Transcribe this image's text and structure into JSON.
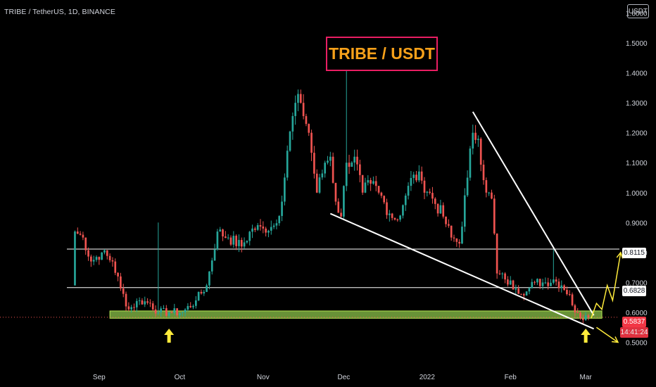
{
  "header": {
    "symbol_title": "TRIBE / TetherUS, 1D, BINANCE",
    "currency": "USDT"
  },
  "annotation": {
    "headline": "TRIBE / USDT"
  },
  "price_tags": {
    "resistance_1": "0.8115",
    "resistance_2": "0.6828",
    "last_price": "0.5837",
    "countdown": "14:41:24"
  },
  "colors": {
    "background": "#000000",
    "bull_candle": "#26a69a",
    "bear_candle": "#ef5350",
    "axis_text": "#d1d4dc",
    "headline_text": "#f7a11a",
    "headline_border": "#e91e63",
    "support_zone": "#8bc34a",
    "arrow": "#ffeb3b",
    "trendline": "#ffffff"
  },
  "chart_data": {
    "type": "candlestick",
    "title": "TRIBE / TetherUS, 1D, BINANCE",
    "ylim": [
      0.44,
      1.62
    ],
    "yticks": [
      1.6,
      1.5,
      1.4,
      1.3,
      1.2,
      1.1,
      1.0,
      0.9,
      0.8,
      0.7,
      0.6,
      0.5
    ],
    "ytick_labels": [
      "1.6000",
      "1.5000",
      "1.4000",
      "1.3000",
      "1.2000",
      "1.1000",
      "1.0000",
      "0.9000",
      "0.8000",
      "0.7000",
      "0.6000",
      "0.5000"
    ],
    "xlim": [
      "2021-08-20",
      "2022-03-13"
    ],
    "x_ticks": [
      {
        "date": "2021-09-01",
        "label": "Sep"
      },
      {
        "date": "2021-10-01",
        "label": "Oct"
      },
      {
        "date": "2021-11-01",
        "label": "Nov"
      },
      {
        "date": "2021-12-01",
        "label": "Dec"
      },
      {
        "date": "2022-01-01",
        "label": "2022"
      },
      {
        "date": "2022-02-01",
        "label": "Feb"
      },
      {
        "date": "2022-03-01",
        "label": "Mar"
      }
    ],
    "grid": false,
    "last_price": 0.5837,
    "anchors": [
      {
        "date": "2021-08-22",
        "price": 0.69,
        "wick_high": 1.1
      },
      {
        "date": "2021-08-23",
        "price": 0.87
      },
      {
        "date": "2021-08-26",
        "price": 0.85
      },
      {
        "date": "2021-08-29",
        "price": 0.77
      },
      {
        "date": "2021-09-02",
        "price": 0.8
      },
      {
        "date": "2021-09-06",
        "price": 0.77
      },
      {
        "date": "2021-09-09",
        "price": 0.68
      },
      {
        "date": "2021-09-12",
        "price": 0.61
      },
      {
        "date": "2021-09-16",
        "price": 0.64
      },
      {
        "date": "2021-09-20",
        "price": 0.63
      },
      {
        "date": "2021-09-23",
        "price": 0.6,
        "wick_high": 0.9
      },
      {
        "date": "2021-09-27",
        "price": 0.6
      },
      {
        "date": "2021-10-02",
        "price": 0.6
      },
      {
        "date": "2021-10-07",
        "price": 0.64
      },
      {
        "date": "2021-10-11",
        "price": 0.69
      },
      {
        "date": "2021-10-15",
        "price": 0.87
      },
      {
        "date": "2021-10-19",
        "price": 0.85
      },
      {
        "date": "2021-10-24",
        "price": 0.82
      },
      {
        "date": "2021-10-28",
        "price": 0.88
      },
      {
        "date": "2021-11-01",
        "price": 0.88
      },
      {
        "date": "2021-11-05",
        "price": 0.89
      },
      {
        "date": "2021-11-08",
        "price": 0.97
      },
      {
        "date": "2021-11-10",
        "price": 1.14
      },
      {
        "date": "2021-11-13",
        "price": 1.3
      },
      {
        "date": "2021-11-15",
        "price": 1.3
      },
      {
        "date": "2021-11-18",
        "price": 1.2
      },
      {
        "date": "2021-11-21",
        "price": 1.0
      },
      {
        "date": "2021-11-24",
        "price": 1.1
      },
      {
        "date": "2021-11-26",
        "price": 1.12
      },
      {
        "date": "2021-11-28",
        "price": 0.97
      },
      {
        "date": "2021-11-30",
        "price": 0.92
      },
      {
        "date": "2021-12-02",
        "price": 1.1,
        "wick_high": 1.52
      },
      {
        "date": "2021-12-05",
        "price": 1.12
      },
      {
        "date": "2021-12-08",
        "price": 1.0
      },
      {
        "date": "2021-12-11",
        "price": 1.03
      },
      {
        "date": "2021-12-14",
        "price": 1.0
      },
      {
        "date": "2021-12-18",
        "price": 0.93
      },
      {
        "date": "2021-12-21",
        "price": 0.91
      },
      {
        "date": "2021-12-24",
        "price": 0.99
      },
      {
        "date": "2021-12-27",
        "price": 1.06
      },
      {
        "date": "2021-12-30",
        "price": 1.04
      },
      {
        "date": "2022-01-03",
        "price": 0.98
      },
      {
        "date": "2022-01-07",
        "price": 0.92
      },
      {
        "date": "2022-01-10",
        "price": 0.85
      },
      {
        "date": "2022-01-13",
        "price": 0.83
      },
      {
        "date": "2022-01-16",
        "price": 1.05
      },
      {
        "date": "2022-01-18",
        "price": 1.2
      },
      {
        "date": "2022-01-20",
        "price": 1.18
      },
      {
        "date": "2022-01-23",
        "price": 1.0
      },
      {
        "date": "2022-01-25",
        "price": 0.98
      },
      {
        "date": "2022-01-27",
        "price": 0.73
      },
      {
        "date": "2022-01-30",
        "price": 0.71
      },
      {
        "date": "2022-02-03",
        "price": 0.68
      },
      {
        "date": "2022-02-07",
        "price": 0.67
      },
      {
        "date": "2022-02-10",
        "price": 0.7
      },
      {
        "date": "2022-02-14",
        "price": 0.7
      },
      {
        "date": "2022-02-17",
        "price": 0.71,
        "wick_high": 0.81
      },
      {
        "date": "2022-02-20",
        "price": 0.69
      },
      {
        "date": "2022-02-23",
        "price": 0.66
      },
      {
        "date": "2022-02-25",
        "price": 0.6
      },
      {
        "date": "2022-02-27",
        "price": 0.58
      },
      {
        "date": "2022-03-01",
        "price": 0.59
      },
      {
        "date": "2022-03-02",
        "price": 0.5837
      }
    ],
    "horizontal_levels": [
      {
        "price": 0.8115,
        "from": "2021-08-20"
      },
      {
        "price": 0.6828,
        "from": "2021-08-20"
      }
    ],
    "support_zone": {
      "low": 0.585,
      "high": 0.6,
      "from": "2021-09-05",
      "to": "2022-03-07"
    },
    "trendlines": [
      {
        "from": [
          "2021-11-26",
          0.93
        ],
        "to": [
          "2022-03-04",
          0.545
        ]
      },
      {
        "from": [
          "2022-01-18",
          1.27
        ],
        "to": [
          "2022-03-04",
          0.59
        ]
      }
    ],
    "projections": [
      {
        "name": "bullish",
        "points": [
          [
            "2022-03-03",
            0.58
          ],
          [
            "2022-03-05",
            0.63
          ],
          [
            "2022-03-07",
            0.61
          ],
          [
            "2022-03-09",
            0.69
          ],
          [
            "2022-03-11",
            0.64
          ],
          [
            "2022-03-14",
            0.8
          ]
        ]
      },
      {
        "name": "bearish",
        "points": [
          [
            "2022-03-05",
            0.55
          ],
          [
            "2022-03-13",
            0.5
          ]
        ]
      }
    ],
    "markers": [
      {
        "type": "up-arrow",
        "date": "2021-09-27",
        "below_price": 0.56
      },
      {
        "type": "up-arrow",
        "date": "2022-03-01",
        "below_price": 0.56
      }
    ]
  }
}
